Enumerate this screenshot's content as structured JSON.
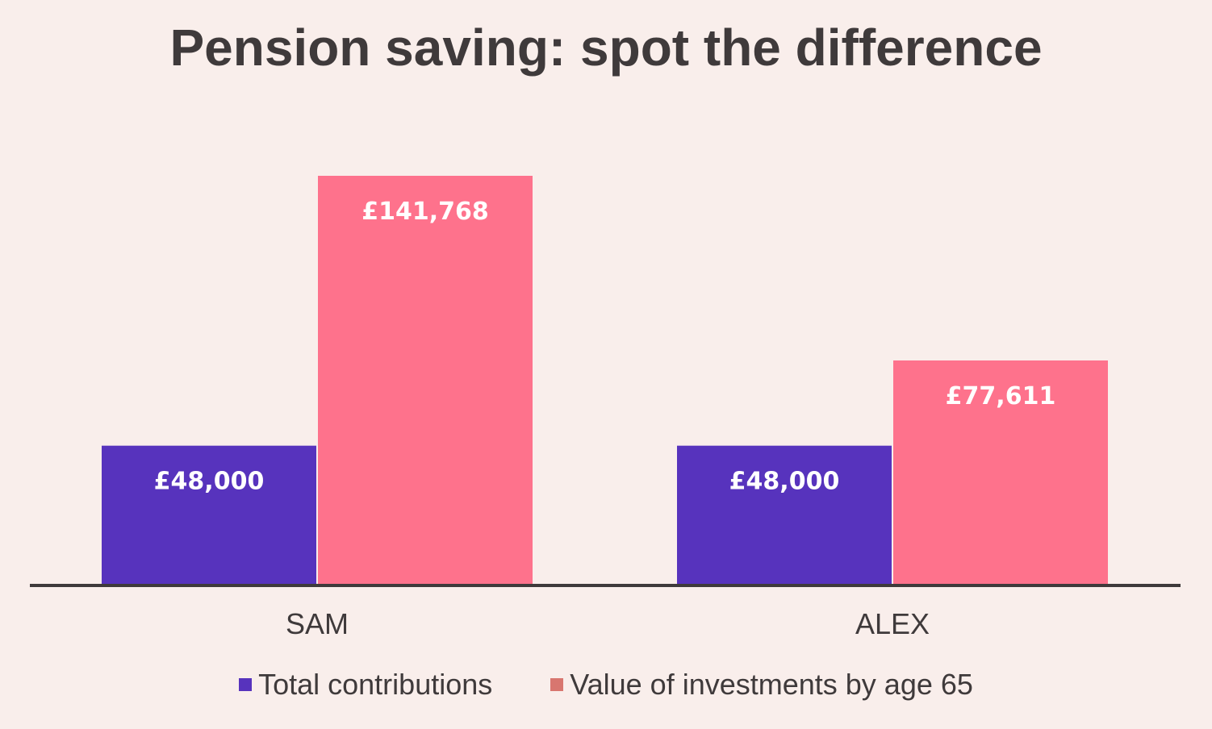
{
  "chart_data": {
    "type": "bar",
    "title": "Pension saving: spot the difference",
    "categories": [
      "SAM",
      "ALEX"
    ],
    "series": [
      {
        "name": "Total contributions",
        "values": [
          48000,
          48000
        ],
        "labels": [
          "£48,000",
          "£48,000"
        ],
        "color": "#5733bd"
      },
      {
        "name": "Value of investments by age 65",
        "values": [
          141768,
          77611
        ],
        "labels": [
          "£141,768",
          "£77,611"
        ],
        "color": "#fe728c"
      }
    ],
    "legend_colors": [
      "#5733bd",
      "#d8766f"
    ],
    "xlabel": "",
    "ylabel": "",
    "ylim": [
      0,
      180000
    ],
    "grid": false,
    "legend": "bottom"
  }
}
